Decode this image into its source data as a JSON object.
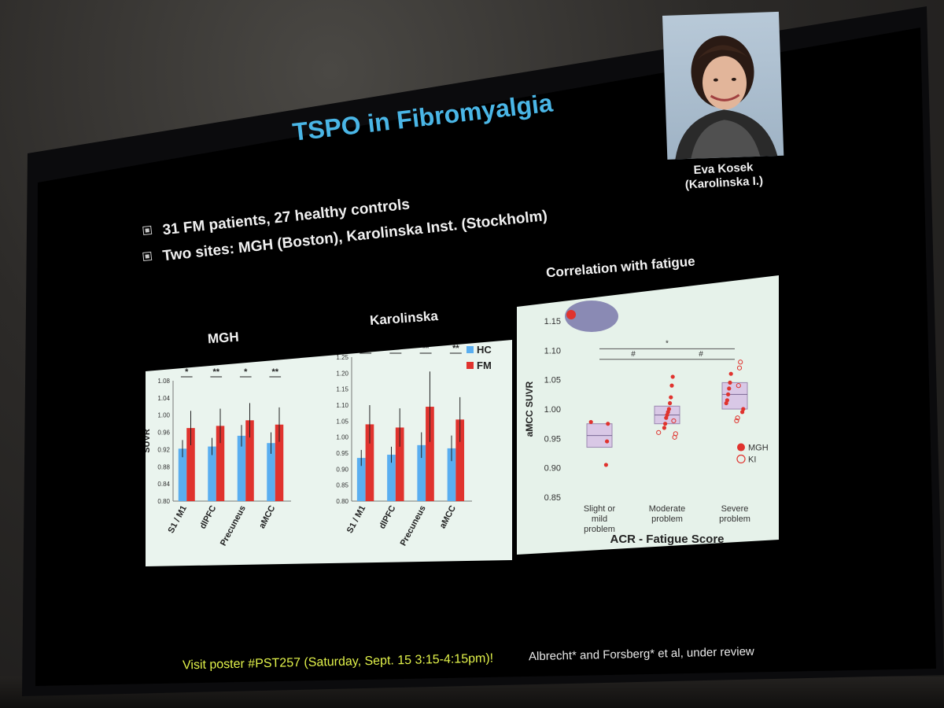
{
  "slide": {
    "title": "TSPO in Fibromyalgia",
    "bullets": [
      "31 FM patients, 27 healthy controls",
      "Two sites: MGH (Boston), Karolinska Inst. (Stockholm)"
    ],
    "presenter": {
      "name": "Eva Kosek",
      "affiliation": "(Karolinska I.)"
    },
    "footer": {
      "poster": "Visit poster #PST257 (Saturday, Sept. 15 3:15-4:15pm)!",
      "credit": "Albrecht* and Forsberg* et al, under review"
    },
    "colors": {
      "title": "#4ab6e6",
      "hc": "#5aaef0",
      "fm": "#e0332e",
      "footer_poster": "#e2f24a",
      "panel_bg": "#e6f2ea"
    }
  },
  "chart_data": [
    {
      "type": "bar",
      "title": "MGH",
      "ylabel": "SUVR",
      "ylim": [
        0.8,
        1.08
      ],
      "yticks": [
        "1.08",
        "1.04",
        "1.00",
        "0.96",
        "0.92",
        "0.88",
        "0.84",
        "0.80"
      ],
      "categories": [
        "S1 / M1",
        "dlPFC",
        "Precuneus",
        "aMCC"
      ],
      "significance": [
        "*",
        "**",
        "*",
        "**"
      ],
      "series": [
        {
          "name": "HC",
          "values": [
            0.922,
            0.927,
            0.952,
            0.935
          ],
          "error": [
            0.02,
            0.02,
            0.025,
            0.025
          ]
        },
        {
          "name": "FM",
          "values": [
            0.97,
            0.975,
            0.988,
            0.978
          ],
          "error": [
            0.04,
            0.04,
            0.04,
            0.04
          ]
        }
      ]
    },
    {
      "type": "bar",
      "title": "Karolinska",
      "ylim": [
        0.8,
        1.25
      ],
      "yticks": [
        "1.25",
        "1.20",
        "1.15",
        "1.10",
        "1.05",
        "1.00",
        "0.95",
        "0.90",
        "0.85",
        "0.80"
      ],
      "categories": [
        "S1 / M1",
        "dlPFC",
        "Precuneus",
        "aMCC"
      ],
      "significance": [
        "**",
        "**",
        "**",
        "**"
      ],
      "legend": [
        "HC",
        "FM"
      ],
      "series": [
        {
          "name": "HC",
          "values": [
            0.935,
            0.945,
            0.975,
            0.965
          ],
          "error": [
            0.025,
            0.025,
            0.04,
            0.04
          ]
        },
        {
          "name": "FM",
          "values": [
            1.04,
            1.03,
            1.095,
            1.055
          ],
          "error": [
            0.06,
            0.06,
            0.11,
            0.07
          ]
        }
      ]
    },
    {
      "type": "scatter",
      "title": "Correlation with fatigue",
      "xlabel": "ACR - Fatigue Score",
      "ylabel": "aMCC SUVR",
      "ylim": [
        0.85,
        1.15
      ],
      "yticks": [
        "1.15",
        "1.10",
        "1.05",
        "1.00",
        "0.95",
        "0.90",
        "0.85"
      ],
      "categories": [
        "Slight or mild problem",
        "Moderate problem",
        "Severe problem"
      ],
      "comparisons": [
        {
          "from": "Slight or mild problem",
          "to": "Moderate problem",
          "mark": "#"
        },
        {
          "from": "Moderate problem",
          "to": "Severe problem",
          "mark": "#"
        },
        {
          "from": "Slight or mild problem",
          "to": "Severe problem",
          "mark": "*"
        }
      ],
      "boxes": [
        {
          "category": "Slight or mild problem",
          "mean": 0.955,
          "low": 0.935,
          "high": 0.975
        },
        {
          "category": "Moderate problem",
          "mean": 0.99,
          "low": 0.975,
          "high": 1.005
        },
        {
          "category": "Severe problem",
          "mean": 1.025,
          "low": 1.0,
          "high": 1.045
        }
      ],
      "series": [
        {
          "name": "MGH",
          "points": [
            [
              1,
              0.978
            ],
            [
              1,
              0.975
            ],
            [
              1,
              0.945
            ],
            [
              1,
              0.905
            ],
            [
              2,
              1.055
            ],
            [
              2,
              1.04
            ],
            [
              2,
              1.02
            ],
            [
              2,
              1.01
            ],
            [
              2,
              1.0
            ],
            [
              2,
              0.995
            ],
            [
              2,
              0.99
            ],
            [
              2,
              0.985
            ],
            [
              2,
              0.975
            ],
            [
              2,
              0.968
            ],
            [
              3,
              1.06
            ],
            [
              3,
              1.045
            ],
            [
              3,
              1.035
            ],
            [
              3,
              1.025
            ],
            [
              3,
              1.015
            ],
            [
              3,
              1.01
            ],
            [
              3,
              1.0
            ],
            [
              3,
              0.995
            ]
          ]
        },
        {
          "name": "KI",
          "points": [
            [
              2,
              0.96
            ],
            [
              2,
              0.958
            ],
            [
              2,
              0.952
            ],
            [
              2,
              0.98
            ],
            [
              3,
              1.08
            ],
            [
              3,
              1.07
            ],
            [
              3,
              1.04
            ],
            [
              3,
              0.985
            ],
            [
              3,
              0.98
            ]
          ]
        }
      ]
    }
  ]
}
